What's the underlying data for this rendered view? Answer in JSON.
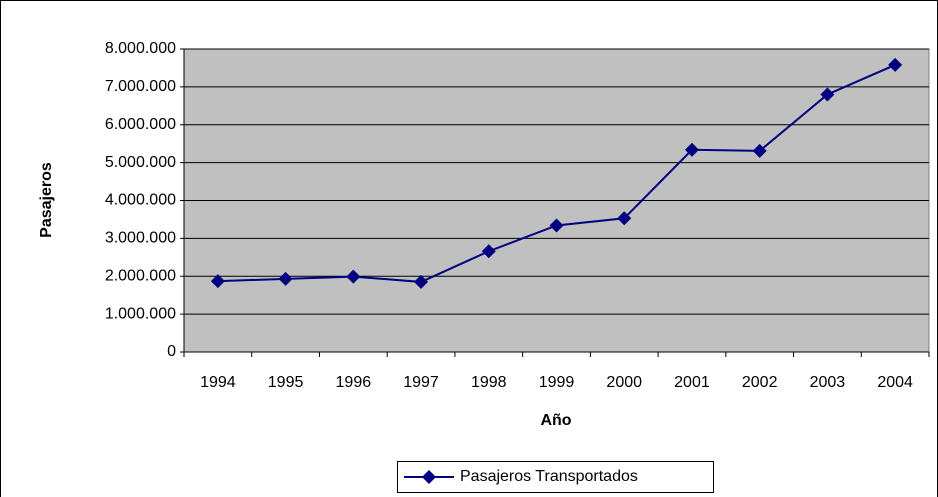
{
  "chart_data": {
    "type": "line",
    "x_label": "Año",
    "y_label": "Pasajeros",
    "categories": [
      "1994",
      "1995",
      "1996",
      "1997",
      "1998",
      "1999",
      "2000",
      "2001",
      "2002",
      "2003",
      "2004"
    ],
    "series": [
      {
        "name": "Pasajeros Transportados",
        "color": "#000080",
        "values": [
          1870000,
          1930000,
          1990000,
          1850000,
          2660000,
          3340000,
          3530000,
          5340000,
          5310000,
          6800000,
          7580000
        ]
      }
    ],
    "ylim": [
      0,
      8000000
    ],
    "yticks": [
      0,
      {
        "value": 1000000,
        "label": "1.000.000"
      },
      {
        "value": 2000000,
        "label": "2.000.000"
      },
      {
        "value": 3000000,
        "label": "3.000.000"
      },
      {
        "value": 4000000,
        "label": "4.000.000"
      },
      {
        "value": 5000000,
        "label": "5.000.000"
      },
      {
        "value": 6000000,
        "label": "6.000.000"
      },
      {
        "value": 7000000,
        "label": "7.000.000"
      },
      {
        "value": 8000000,
        "label": "8.000.000"
      }
    ],
    "grid": true,
    "plot_background": "#c0c0c0",
    "legend_position": "bottom"
  }
}
